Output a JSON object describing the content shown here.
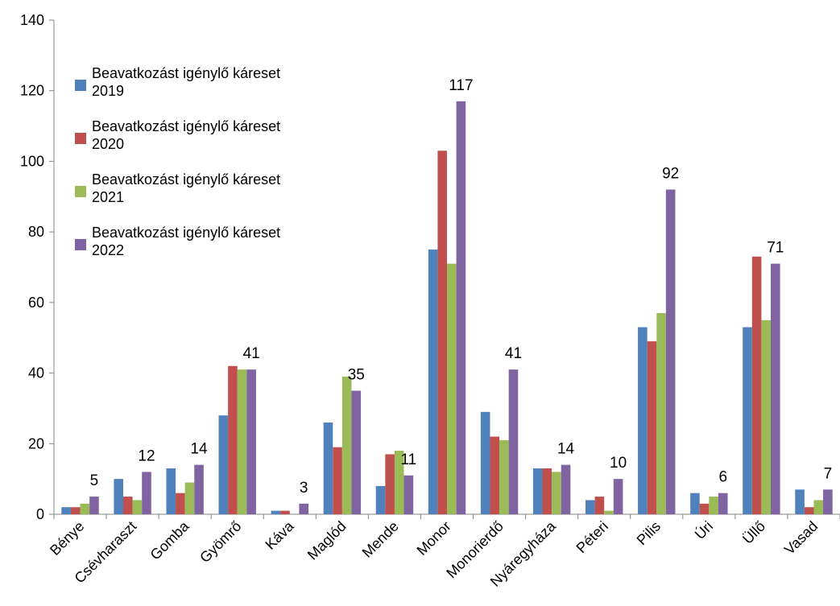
{
  "chart_data": {
    "type": "bar",
    "title": "",
    "xlabel": "",
    "ylabel": "",
    "ylim": [
      0,
      140
    ],
    "yticks": [
      0,
      20,
      40,
      60,
      80,
      100,
      120,
      140
    ],
    "grid": false,
    "legend_position": "top-left",
    "categories": [
      "Bénye",
      "Csévharaszt",
      "Gomba",
      "Gyömrő",
      "Káva",
      "Maglód",
      "Mende",
      "Monor",
      "Monorierdő",
      "Nyáregyháza",
      "Péteri",
      "Pilis",
      "Úri",
      "Üllő",
      "Vasad"
    ],
    "series": [
      {
        "name": "Beavatkozást igénylő káreset 2019",
        "color": "#4f81bd",
        "values": [
          2,
          10,
          13,
          28,
          1,
          26,
          8,
          75,
          29,
          13,
          4,
          53,
          6,
          53,
          7
        ]
      },
      {
        "name": "Beavatkozást igénylő káreset 2020",
        "color": "#c0504d",
        "values": [
          2,
          5,
          6,
          42,
          1,
          19,
          17,
          103,
          22,
          13,
          5,
          49,
          3,
          73,
          2
        ]
      },
      {
        "name": "Beavatkozást igénylő káreset 2021",
        "color": "#9bbb59",
        "values": [
          3,
          4,
          9,
          41,
          0,
          39,
          18,
          71,
          21,
          12,
          1,
          57,
          5,
          55,
          4
        ]
      },
      {
        "name": "Beavatkozást igénylő káreset 2022",
        "color": "#8064a2",
        "values": [
          5,
          12,
          14,
          41,
          3,
          35,
          11,
          117,
          41,
          14,
          10,
          92,
          6,
          71,
          7
        ]
      }
    ],
    "data_labels": {
      "series_index": 3,
      "values": [
        "5",
        "12",
        "14",
        "41",
        "3",
        "35",
        "11",
        "117",
        "41",
        "14",
        "10",
        "92",
        "6",
        "71",
        "7"
      ]
    }
  }
}
